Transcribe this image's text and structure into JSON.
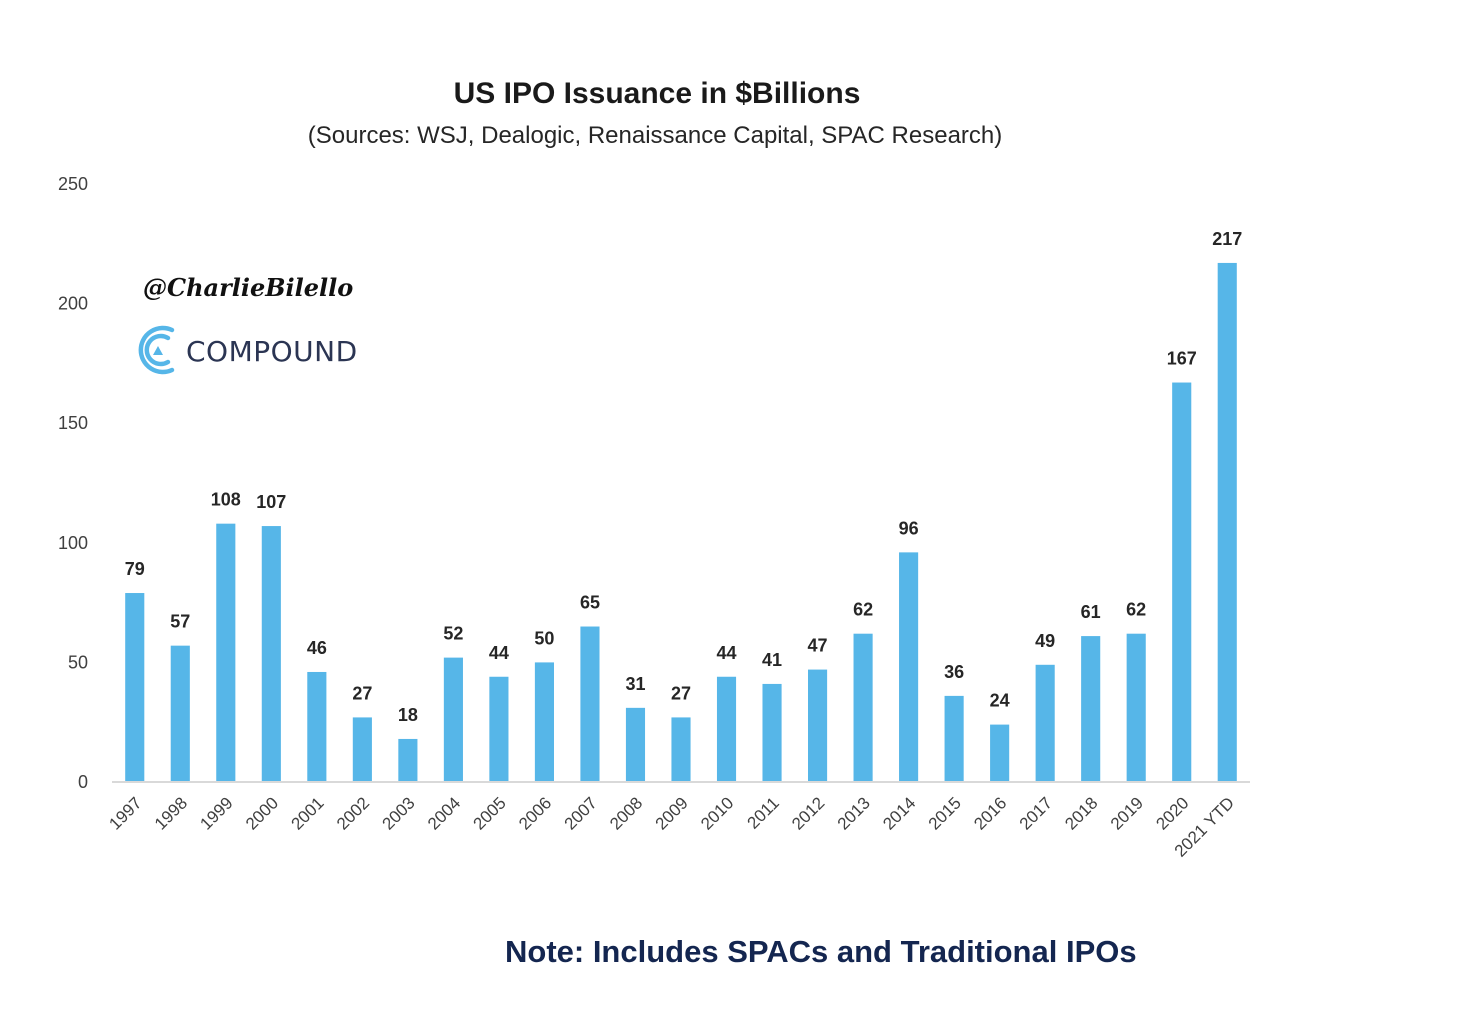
{
  "chart_data": {
    "type": "bar",
    "title": "US IPO Issuance in $Billions",
    "subtitle": "(Sources: WSJ, Dealogic, Renaissance Capital, SPAC Research)",
    "xlabel": "",
    "ylabel": "",
    "ylim": [
      0,
      250
    ],
    "yticks": [
      0,
      50,
      100,
      150,
      200,
      250
    ],
    "grid": false,
    "legend": null,
    "bar_color": "#56b6e8",
    "categories": [
      "1997",
      "1998",
      "1999",
      "2000",
      "2001",
      "2002",
      "2003",
      "2004",
      "2005",
      "2006",
      "2007",
      "2008",
      "2009",
      "2010",
      "2011",
      "2012",
      "2013",
      "2014",
      "2015",
      "2016",
      "2017",
      "2018",
      "2019",
      "2020",
      "2021 YTD"
    ],
    "values": [
      79,
      57,
      108,
      107,
      46,
      27,
      18,
      52,
      44,
      50,
      65,
      31,
      27,
      44,
      41,
      47,
      62,
      96,
      36,
      24,
      49,
      61,
      62,
      167,
      217
    ],
    "data_labels": true
  },
  "watermark": {
    "handle": "@CharlieBilello",
    "brand": "COMPOUND",
    "brand_color": "#56b6e8"
  },
  "note": "Note: Includes SPACs and Traditional IPOs"
}
